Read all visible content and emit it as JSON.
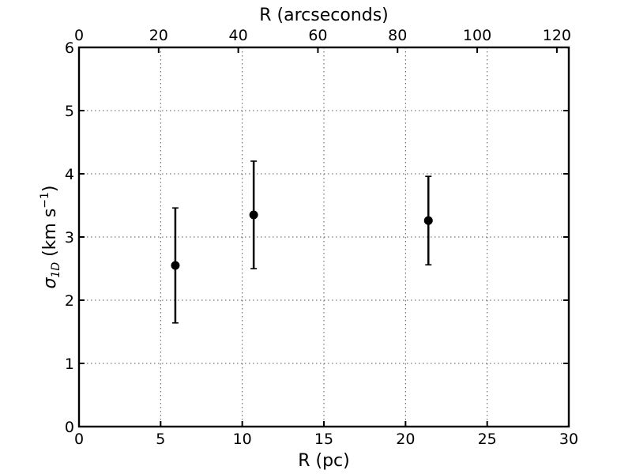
{
  "chart_data": {
    "type": "scatter",
    "title": "",
    "xlabel": "R (pc)",
    "xlabel_top": "R (arcseconds)",
    "ylabel": "σ_1D (km s^-1)",
    "ylabel_parts": {
      "sigma": "σ",
      "subscript": "1D",
      "prefix": " (km s",
      "superscript": "−1",
      "suffix": ")"
    },
    "xlim": [
      0,
      30
    ],
    "ylim": [
      0,
      6
    ],
    "xlim_top": [
      0,
      123
    ],
    "xticks": [
      0,
      5,
      10,
      15,
      20,
      25,
      30
    ],
    "xticks_top": [
      0,
      20,
      40,
      60,
      80,
      100,
      120
    ],
    "yticks": [
      0,
      1,
      2,
      3,
      4,
      5,
      6
    ],
    "grid": true,
    "marker_color": "#000000",
    "series": [
      {
        "x": [
          5.9,
          10.7,
          21.4
        ],
        "y": [
          2.55,
          3.35,
          3.26
        ],
        "yerr_low": [
          1.64,
          2.5,
          2.56
        ],
        "yerr_high": [
          3.46,
          4.2,
          3.96
        ]
      }
    ]
  }
}
